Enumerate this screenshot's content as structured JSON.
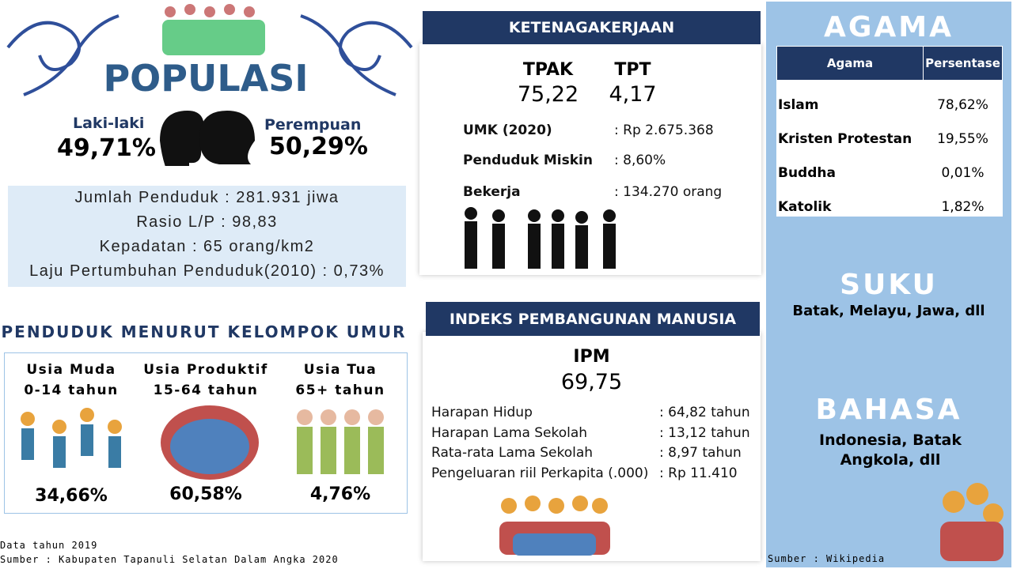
{
  "populasi": {
    "title": "POPULASI",
    "male_label": "Laki-laki",
    "male_value": "49,71%",
    "female_label": "Perempuan",
    "female_value": "50,29%",
    "stats": [
      "Jumlah Penduduk : 281.931 jiwa",
      "Rasio L/P : 98,83",
      "Kepadatan : 65 orang/km2",
      "Laju Pertumbuhan Penduduk(2010) : 0,73%"
    ]
  },
  "umur": {
    "title": "PENDUDUK MENURUT KELOMPOK UMUR",
    "groups": [
      {
        "name": "Usia Muda",
        "range": "0-14 tahun",
        "value": "34,66%"
      },
      {
        "name": "Usia Produktif",
        "range": "15-64 tahun",
        "value": "60,58%"
      },
      {
        "name": "Usia Tua",
        "range": "65+ tahun",
        "value": "4,76%"
      }
    ]
  },
  "footer": {
    "year": "Data tahun 2019",
    "source": "Sumber : Kabupaten Tapanuli Selatan Dalam Angka 2020"
  },
  "ketenagakerjaan": {
    "title": "KETENAGAKERJAAN",
    "tpak_label": "TPAK",
    "tpak_value": "75,22",
    "tpt_label": "TPT",
    "tpt_value": "4,17",
    "rows": [
      {
        "label": "UMK (2020)",
        "value": ": Rp 2.675.368"
      },
      {
        "label": "Penduduk Miskin",
        "value": ": 8,60%"
      },
      {
        "label": "Bekerja",
        "value": ": 134.270 orang"
      }
    ]
  },
  "ipm": {
    "title": "INDEKS PEMBANGUNAN MANUSIA",
    "label": "IPM",
    "value": "69,75",
    "rows": [
      {
        "label": "Harapan Hidup",
        "value": ": 64,82 tahun"
      },
      {
        "label": "Harapan Lama Sekolah",
        "value": ": 13,12 tahun"
      },
      {
        "label": "Rata-rata Lama Sekolah",
        "value": ": 8,97 tahun"
      },
      {
        "label": "Pengeluaran riil Perkapita (.000)",
        "value": ": Rp 11.410"
      }
    ]
  },
  "agama": {
    "title": "AGAMA",
    "headers": [
      "Agama",
      "Persentase"
    ],
    "rows": [
      [
        "Islam",
        "78,62%"
      ],
      [
        "Kristen Protestan",
        "19,55%"
      ],
      [
        "Buddha",
        "0,01%"
      ],
      [
        "Katolik",
        "1,82%"
      ]
    ]
  },
  "suku": {
    "title": "SUKU",
    "text": "Batak, Melayu, Jawa, dll"
  },
  "bahasa": {
    "title": "BAHASA",
    "text": "Indonesia, Batak Angkola, dll"
  },
  "right_source": "Sumber : Wikipedia"
}
